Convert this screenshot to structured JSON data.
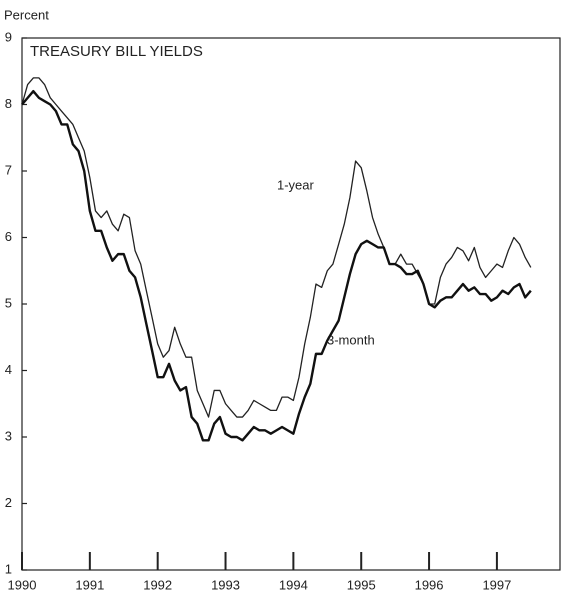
{
  "chart_data": {
    "type": "line",
    "title": "TREASURY BILL YIELDS",
    "y_label": "Percent",
    "annotations": [
      "1-year",
      "3-month"
    ],
    "xlim": [
      1990,
      1997.93
    ],
    "xticks": [
      1990,
      1991,
      1992,
      1993,
      1994,
      1995,
      1996,
      1997
    ],
    "ylim": [
      1,
      9
    ],
    "yticks": [
      1,
      2,
      3,
      4,
      5,
      6,
      7,
      8,
      9
    ],
    "x": [
      1990,
      1990.083,
      1990.167,
      1990.25,
      1990.333,
      1990.417,
      1990.5,
      1990.583,
      1990.667,
      1990.75,
      1990.833,
      1990.917,
      1991,
      1991.083,
      1991.167,
      1991.25,
      1991.333,
      1991.417,
      1991.5,
      1991.583,
      1991.667,
      1991.75,
      1991.833,
      1991.917,
      1992,
      1992.083,
      1992.167,
      1992.25,
      1992.333,
      1992.417,
      1992.5,
      1992.583,
      1992.667,
      1992.75,
      1992.833,
      1992.917,
      1993,
      1993.083,
      1993.167,
      1993.25,
      1993.333,
      1993.417,
      1993.5,
      1993.583,
      1993.667,
      1993.75,
      1993.833,
      1993.917,
      1994,
      1994.083,
      1994.167,
      1994.25,
      1994.333,
      1994.417,
      1994.5,
      1994.583,
      1994.667,
      1994.75,
      1994.833,
      1994.917,
      1995,
      1995.083,
      1995.167,
      1995.25,
      1995.333,
      1995.417,
      1995.5,
      1995.583,
      1995.667,
      1995.75,
      1995.833,
      1995.917,
      1996,
      1996.083,
      1996.167,
      1996.25,
      1996.333,
      1996.417,
      1996.5,
      1996.583,
      1996.667,
      1996.75,
      1996.833,
      1996.917,
      1997,
      1997.083,
      1997.167,
      1997.25,
      1997.333,
      1997.417,
      1997.5
    ],
    "series": [
      {
        "name": "1-year",
        "color": "#222222",
        "linewidth": 1.3,
        "values": [
          8.0,
          8.3,
          8.4,
          8.4,
          8.3,
          8.1,
          8.0,
          7.9,
          7.8,
          7.7,
          7.5,
          7.3,
          6.9,
          6.4,
          6.3,
          6.4,
          6.2,
          6.1,
          6.35,
          6.3,
          5.8,
          5.6,
          5.2,
          4.8,
          4.4,
          4.2,
          4.3,
          4.65,
          4.4,
          4.2,
          4.2,
          3.7,
          3.5,
          3.3,
          3.7,
          3.7,
          3.5,
          3.4,
          3.3,
          3.3,
          3.4,
          3.55,
          3.5,
          3.45,
          3.4,
          3.4,
          3.6,
          3.6,
          3.55,
          3.9,
          4.4,
          4.8,
          5.3,
          5.25,
          5.5,
          5.6,
          5.9,
          6.2,
          6.6,
          7.15,
          7.05,
          6.7,
          6.3,
          6.05,
          5.85,
          5.6,
          5.6,
          5.75,
          5.6,
          5.6,
          5.45,
          5.3,
          5.0,
          5.0,
          5.4,
          5.6,
          5.7,
          5.85,
          5.8,
          5.65,
          5.85,
          5.55,
          5.4,
          5.5,
          5.6,
          5.55,
          5.8,
          6.0,
          5.9,
          5.7,
          5.55
        ]
      },
      {
        "name": "3-month",
        "color": "#111111",
        "linewidth": 2.4,
        "values": [
          8.0,
          8.1,
          8.2,
          8.1,
          8.05,
          8.0,
          7.9,
          7.7,
          7.7,
          7.4,
          7.3,
          7.0,
          6.4,
          6.1,
          6.1,
          5.85,
          5.65,
          5.75,
          5.75,
          5.5,
          5.4,
          5.1,
          4.7,
          4.3,
          3.9,
          3.9,
          4.1,
          3.85,
          3.7,
          3.75,
          3.3,
          3.2,
          2.95,
          2.95,
          3.2,
          3.3,
          3.05,
          3.0,
          3.0,
          2.95,
          3.05,
          3.15,
          3.1,
          3.1,
          3.05,
          3.1,
          3.15,
          3.1,
          3.05,
          3.35,
          3.6,
          3.8,
          4.25,
          4.25,
          4.45,
          4.6,
          4.75,
          5.1,
          5.45,
          5.75,
          5.9,
          5.95,
          5.9,
          5.85,
          5.85,
          5.6,
          5.6,
          5.55,
          5.45,
          5.45,
          5.5,
          5.3,
          5.0,
          4.95,
          5.05,
          5.1,
          5.1,
          5.2,
          5.3,
          5.2,
          5.25,
          5.15,
          5.15,
          5.05,
          5.1,
          5.2,
          5.15,
          5.25,
          5.3,
          5.1,
          5.2
        ]
      }
    ]
  }
}
